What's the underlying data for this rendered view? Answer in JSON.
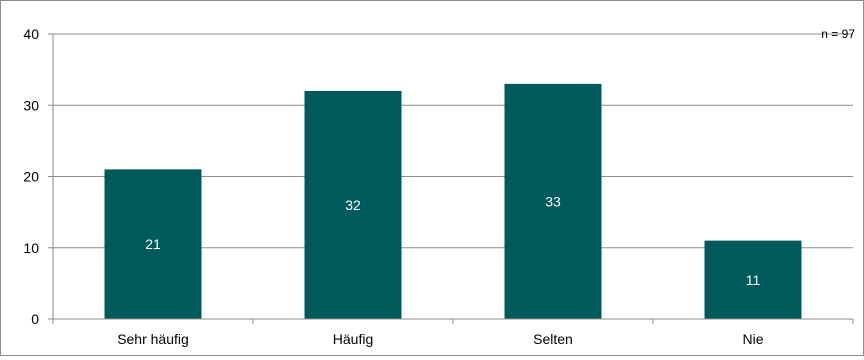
{
  "chart_data": {
    "type": "bar",
    "categories": [
      "Sehr häufig",
      "Häufig",
      "Selten",
      "Nie"
    ],
    "values": [
      21,
      32,
      33,
      11
    ],
    "data_labels": [
      "21",
      "32",
      "33",
      "11"
    ],
    "ylim": [
      0,
      40
    ],
    "yticks": [
      "0",
      "10",
      "20",
      "30",
      "40"
    ],
    "annotation": "n = 97",
    "grid": true,
    "bar_color": "#005a5c",
    "title": "",
    "xlabel": "",
    "ylabel": ""
  }
}
